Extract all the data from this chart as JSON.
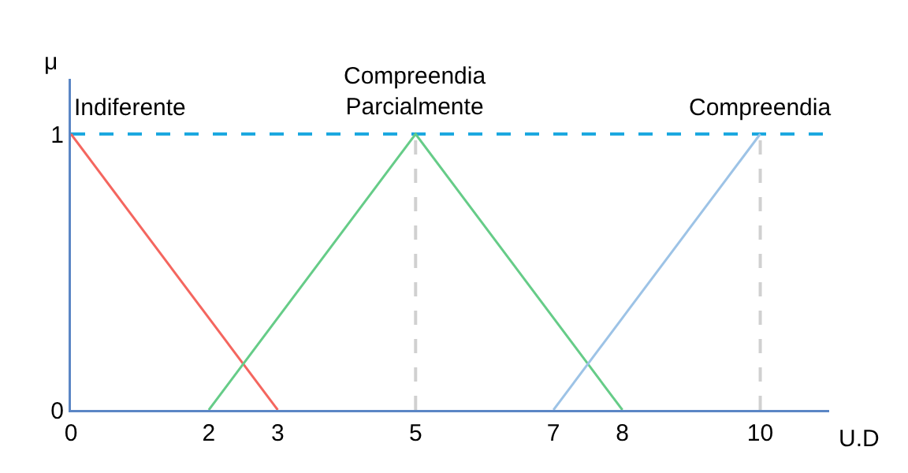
{
  "chart_data": {
    "type": "line",
    "xlabel": "U.D",
    "ylabel": "μ",
    "series": [
      {
        "name": "Indiferente",
        "color": "#f4665f",
        "x": [
          0,
          3
        ],
        "values": [
          1,
          0
        ]
      },
      {
        "name": "Compreendia Parcialmente",
        "color": "#66cc88",
        "x": [
          2,
          5,
          8
        ],
        "values": [
          0,
          1,
          0
        ]
      },
      {
        "name": "Compreendia",
        "color": "#9dc3e6",
        "x": [
          7,
          10
        ],
        "values": [
          0,
          1
        ]
      }
    ],
    "xlim": [
      0,
      11
    ],
    "xticks": [
      0,
      2,
      3,
      5,
      7,
      8,
      10
    ],
    "ylim": [
      0,
      1.2
    ],
    "yticks": [
      0,
      1
    ],
    "ref_lines": [
      {
        "axis": "y",
        "value": 1,
        "color": "#1ca8e0",
        "line_style": "dashed"
      },
      {
        "axis": "x",
        "value": 5,
        "color": "#d0d0d0",
        "line_style": "dashed"
      },
      {
        "axis": "x",
        "value": 10,
        "color": "#d0d0d0",
        "line_style": "dashed"
      }
    ],
    "grid": false,
    "legend": false,
    "marker": "none",
    "line_style": "solid"
  }
}
